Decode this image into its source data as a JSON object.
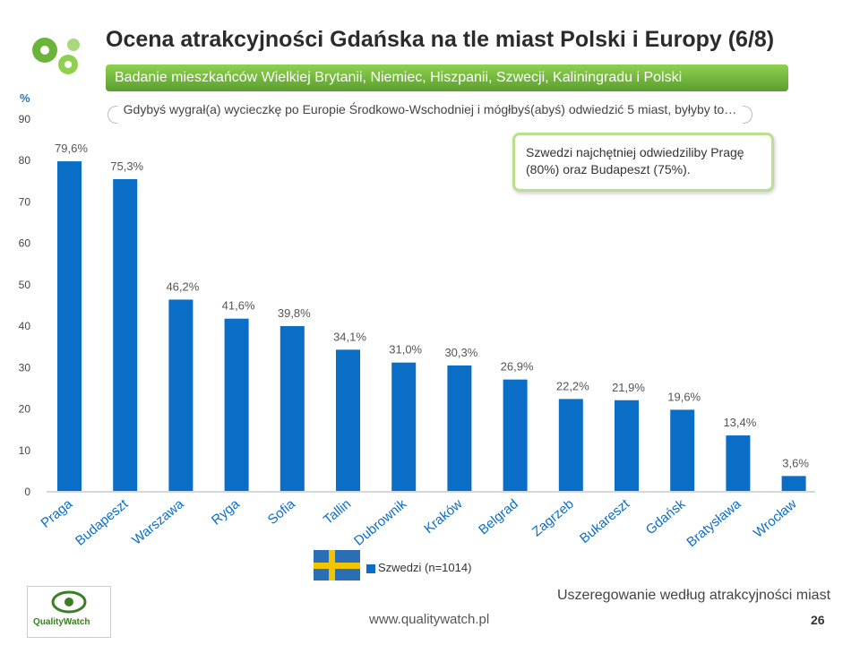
{
  "header": {
    "title": "Ocena atrakcyjności  Gdańska na tle miast Polski i Europy (6/8)",
    "subtitle": "Badanie mieszkańców Wielkiej Brytanii, Niemiec, Hiszpanii, Szwecji, Kaliningradu i Polski",
    "question": "Gdybyś wygrał(a) wycieczkę po Europie Środkowo-Wschodniej i mógłbyś(abyś) odwiedzić 5 miast, byłyby to…"
  },
  "callout": {
    "text": "Szwedzi  najchętniej  odwiedziliby  Pragę (80%) oraz Budapeszt (75%)."
  },
  "legend": {
    "label": "Szwedzi (n=1014)"
  },
  "footer": {
    "note": "Uszeregowanie według atrakcyjności miast",
    "url": "www.qualitywatch.pl",
    "page": "26",
    "logo_text": "QualityWatch"
  },
  "colors": {
    "bar": "#0b6ec6",
    "accent_green": "#6bb33a"
  },
  "chart_data": {
    "type": "bar",
    "ylabel": "%",
    "ylim": [
      0,
      90
    ],
    "yticks": [
      0,
      10,
      20,
      30,
      40,
      50,
      60,
      70,
      80,
      90
    ],
    "categories": [
      "Praga",
      "Budapeszt",
      "Warszawa",
      "Ryga",
      "Sofia",
      "Tallin",
      "Dubrownik",
      "Kraków",
      "Belgrad",
      "Zagrzeb",
      "Bukareszt",
      "Gdańsk",
      "Bratysława",
      "Wrocław"
    ],
    "series": [
      {
        "name": "Szwedzi (n=1014)",
        "values": [
          79.6,
          75.3,
          46.2,
          41.6,
          39.8,
          34.1,
          31.0,
          30.3,
          26.9,
          22.2,
          21.9,
          19.6,
          13.4,
          3.6
        ],
        "labels": [
          "79,6%",
          "75,3%",
          "46,2%",
          "41,6%",
          "39,8%",
          "34,1%",
          "31,0%",
          "30,3%",
          "26,9%",
          "22,2%",
          "21,9%",
          "19,6%",
          "13,4%",
          "3,6%"
        ]
      }
    ]
  }
}
